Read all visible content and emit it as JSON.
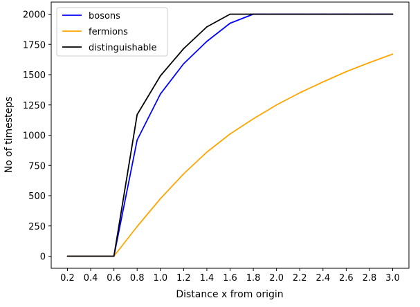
{
  "chart_data": {
    "type": "line",
    "xlabel": "Distance x from origin",
    "ylabel": "No of timesteps",
    "xlim": [
      0.06,
      3.14
    ],
    "ylim": [
      -100,
      2100
    ],
    "x_ticks": [
      "0.2",
      "0.4",
      "0.6",
      "0.8",
      "1.0",
      "1.2",
      "1.4",
      "1.6",
      "1.8",
      "2.0",
      "2.2",
      "2.4",
      "2.6",
      "2.8",
      "3.0"
    ],
    "y_ticks": [
      "0",
      "250",
      "500",
      "750",
      "1000",
      "1250",
      "1500",
      "1750",
      "2000"
    ],
    "grid": false,
    "legend_position": "upper-left",
    "x": [
      0.2,
      0.4,
      0.6,
      0.8,
      1.0,
      1.2,
      1.4,
      1.6,
      1.8,
      2.0,
      2.2,
      2.4,
      2.6,
      2.8,
      3.0
    ],
    "series": [
      {
        "name": "bosons",
        "color": "#0000ff",
        "values": [
          0,
          0,
          0,
          960,
          1340,
          1590,
          1775,
          1925,
          2000,
          2000,
          2000,
          2000,
          2000,
          2000,
          2000
        ]
      },
      {
        "name": "fermions",
        "color": "#ffa500",
        "values": [
          0,
          0,
          0,
          245,
          475,
          680,
          860,
          1010,
          1135,
          1250,
          1350,
          1440,
          1525,
          1600,
          1670
        ]
      },
      {
        "name": "distinguishable",
        "color": "#000000",
        "values": [
          0,
          0,
          0,
          1170,
          1490,
          1715,
          1895,
          2000,
          2000,
          2000,
          2000,
          2000,
          2000,
          2000,
          2000
        ]
      }
    ]
  }
}
